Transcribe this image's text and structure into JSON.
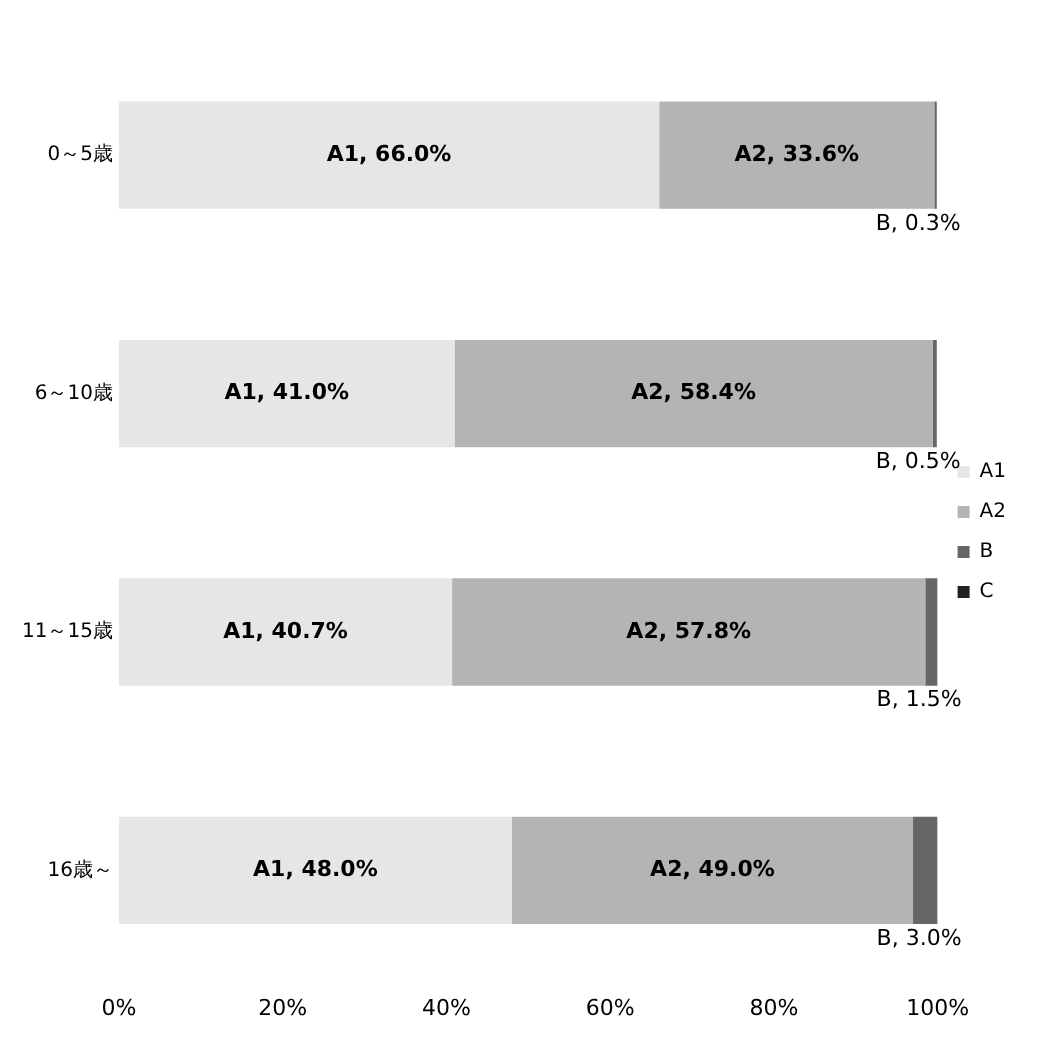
{
  "chart_data": {
    "type": "bar",
    "orientation": "horizontal",
    "stacked": true,
    "categories": [
      "0～5歳",
      "6～10歳",
      "11～15歳",
      "16歳～"
    ],
    "series": [
      {
        "name": "A1",
        "color": "#e6e6e6",
        "values": [
          66.0,
          41.0,
          40.7,
          48.0
        ],
        "value_labels": [
          "A1, 66.0%",
          "A1, 41.0%",
          "A1, 40.7%",
          "A1, 48.0%"
        ]
      },
      {
        "name": "A2",
        "color": "#b4b4b4",
        "values": [
          33.6,
          58.4,
          57.8,
          49.0
        ],
        "value_labels": [
          "A2, 33.6%",
          "A2, 58.4%",
          "A2, 57.8%",
          "A2, 49.0%"
        ]
      },
      {
        "name": "B",
        "color": "#666666",
        "values": [
          0.3,
          0.5,
          1.5,
          3.0
        ],
        "value_labels": [
          "B, 0.3%",
          "B, 0.5%",
          "B, 1.5%",
          "B, 3.0%"
        ]
      },
      {
        "name": "C",
        "color": "#222222",
        "values": [
          null,
          null,
          null,
          null
        ]
      }
    ],
    "xlim": [
      0,
      100
    ],
    "xticks": [
      {
        "value": 0,
        "label": "0%"
      },
      {
        "value": 20,
        "label": "20%"
      },
      {
        "value": 40,
        "label": "40%"
      },
      {
        "value": 60,
        "label": "60%"
      },
      {
        "value": 80,
        "label": "80%"
      },
      {
        "value": 100,
        "label": "100%"
      }
    ],
    "grid": false,
    "legend": "right"
  }
}
